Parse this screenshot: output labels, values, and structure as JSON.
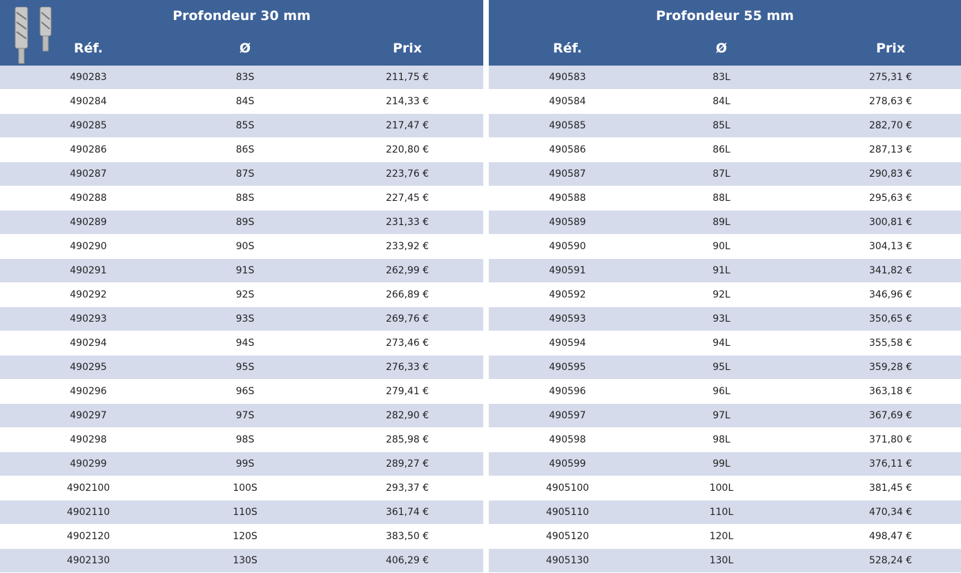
{
  "tables": [
    {
      "title": "Profondeur 30 mm",
      "headers": [
        "Réf.",
        "Ø",
        "Prix"
      ],
      "rows": [
        [
          "490283",
          "83S",
          "211,75 €"
        ],
        [
          "490284",
          "84S",
          "214,33 €"
        ],
        [
          "490285",
          "85S",
          "217,47 €"
        ],
        [
          "490286",
          "86S",
          "220,80 €"
        ],
        [
          "490287",
          "87S",
          "223,76 €"
        ],
        [
          "490288",
          "88S",
          "227,45 €"
        ],
        [
          "490289",
          "89S",
          "231,33 €"
        ],
        [
          "490290",
          "90S",
          "233,92 €"
        ],
        [
          "490291",
          "91S",
          "262,99 €"
        ],
        [
          "490292",
          "92S",
          "266,89 €"
        ],
        [
          "490293",
          "93S",
          "269,76 €"
        ],
        [
          "490294",
          "94S",
          "273,46 €"
        ],
        [
          "490295",
          "95S",
          "276,33 €"
        ],
        [
          "490296",
          "96S",
          "279,41 €"
        ],
        [
          "490297",
          "97S",
          "282,90 €"
        ],
        [
          "490298",
          "98S",
          "285,98 €"
        ],
        [
          "490299",
          "99S",
          "289,27 €"
        ],
        [
          "4902100",
          "100S",
          "293,37 €"
        ],
        [
          "4902110",
          "110S",
          "361,74 €"
        ],
        [
          "4902120",
          "120S",
          "383,50 €"
        ],
        [
          "4902130",
          "130S",
          "406,29 €"
        ]
      ]
    },
    {
      "title": "Profondeur 55 mm",
      "headers": [
        "Réf.",
        "Ø",
        "Prix"
      ],
      "rows": [
        [
          "490583",
          "83L",
          "275,31 €"
        ],
        [
          "490584",
          "84L",
          "278,63 €"
        ],
        [
          "490585",
          "85L",
          "282,70 €"
        ],
        [
          "490586",
          "86L",
          "287,13 €"
        ],
        [
          "490587",
          "87L",
          "290,83 €"
        ],
        [
          "490588",
          "88L",
          "295,63 €"
        ],
        [
          "490589",
          "89L",
          "300,81 €"
        ],
        [
          "490590",
          "90L",
          "304,13 €"
        ],
        [
          "490591",
          "91L",
          "341,82 €"
        ],
        [
          "490592",
          "92L",
          "346,96 €"
        ],
        [
          "490593",
          "93L",
          "350,65 €"
        ],
        [
          "490594",
          "94L",
          "355,58 €"
        ],
        [
          "490595",
          "95L",
          "359,28 €"
        ],
        [
          "490596",
          "96L",
          "363,18 €"
        ],
        [
          "490597",
          "97L",
          "367,69 €"
        ],
        [
          "490598",
          "98L",
          "371,80 €"
        ],
        [
          "490599",
          "99L",
          "376,11 €"
        ],
        [
          "4905100",
          "100L",
          "381,45 €"
        ],
        [
          "4905110",
          "110L",
          "470,34 €"
        ],
        [
          "4905120",
          "120L",
          "498,47 €"
        ],
        [
          "4905130",
          "130L",
          "528,24 €"
        ]
      ]
    }
  ]
}
